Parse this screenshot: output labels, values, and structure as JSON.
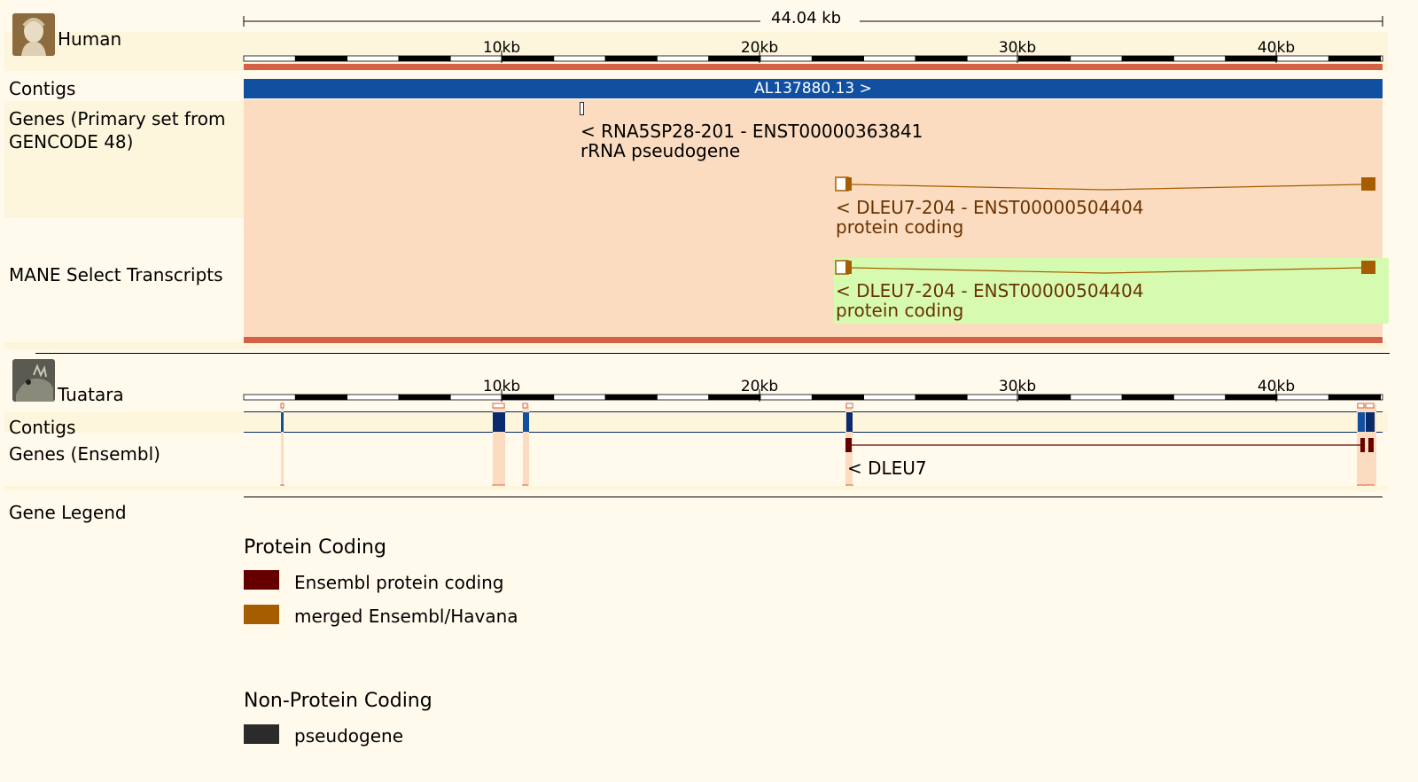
{
  "colors": {
    "background": "#fffaec",
    "alt_band": "#fdf5dc",
    "region_highlight": "#fbdcc0",
    "contig_blue": "#1150a0",
    "contig_dark": "#0a2a6e",
    "red_bar": "#d66045",
    "merged_orange": "#a65d00",
    "ensembl_pc": "#660000",
    "mane_green": "#d6fbb0",
    "pseudogene": "#2b2b2b",
    "dleu_text": "#6a3300"
  },
  "human": {
    "species": "Human",
    "icon": "human-bust-icon",
    "scale_label": "44.04 kb",
    "ticks": [
      "10kb",
      "20kb",
      "30kb",
      "40kb"
    ],
    "tracks": {
      "contigs_label": "Contigs",
      "contig_name": "AL137880.13 >",
      "genes_label": "Genes (Primary set from GENCODE 48)",
      "mane_label": "MANE Select Transcripts"
    },
    "genes": [
      {
        "name": "< RNA5SP28-201 - ENST00000363841",
        "biotype": "rRNA pseudogene"
      },
      {
        "name": "< DLEU7-204 - ENST00000504404",
        "biotype": "protein coding"
      }
    ],
    "mane": [
      {
        "name": "< DLEU7-204 - ENST00000504404",
        "biotype": "protein coding"
      }
    ]
  },
  "tuatara": {
    "species": "Tuatara",
    "icon": "tuatara-lizard-icon",
    "ticks": [
      "10kb",
      "20kb",
      "30kb",
      "40kb"
    ],
    "tracks": {
      "contigs_label": "Contigs",
      "genes_label": "Genes (Ensembl)"
    },
    "genes": [
      {
        "name": "< DLEU7"
      }
    ]
  },
  "legend": {
    "label": "Gene Legend",
    "groups": [
      {
        "title": "Protein Coding",
        "items": [
          {
            "label": "Ensembl protein coding",
            "color": "#660000"
          },
          {
            "label": "merged Ensembl/Havana",
            "color": "#a65d00"
          }
        ]
      },
      {
        "title": "Non-Protein Coding",
        "items": [
          {
            "label": "pseudogene",
            "color": "#2b2b2b"
          }
        ]
      }
    ]
  }
}
